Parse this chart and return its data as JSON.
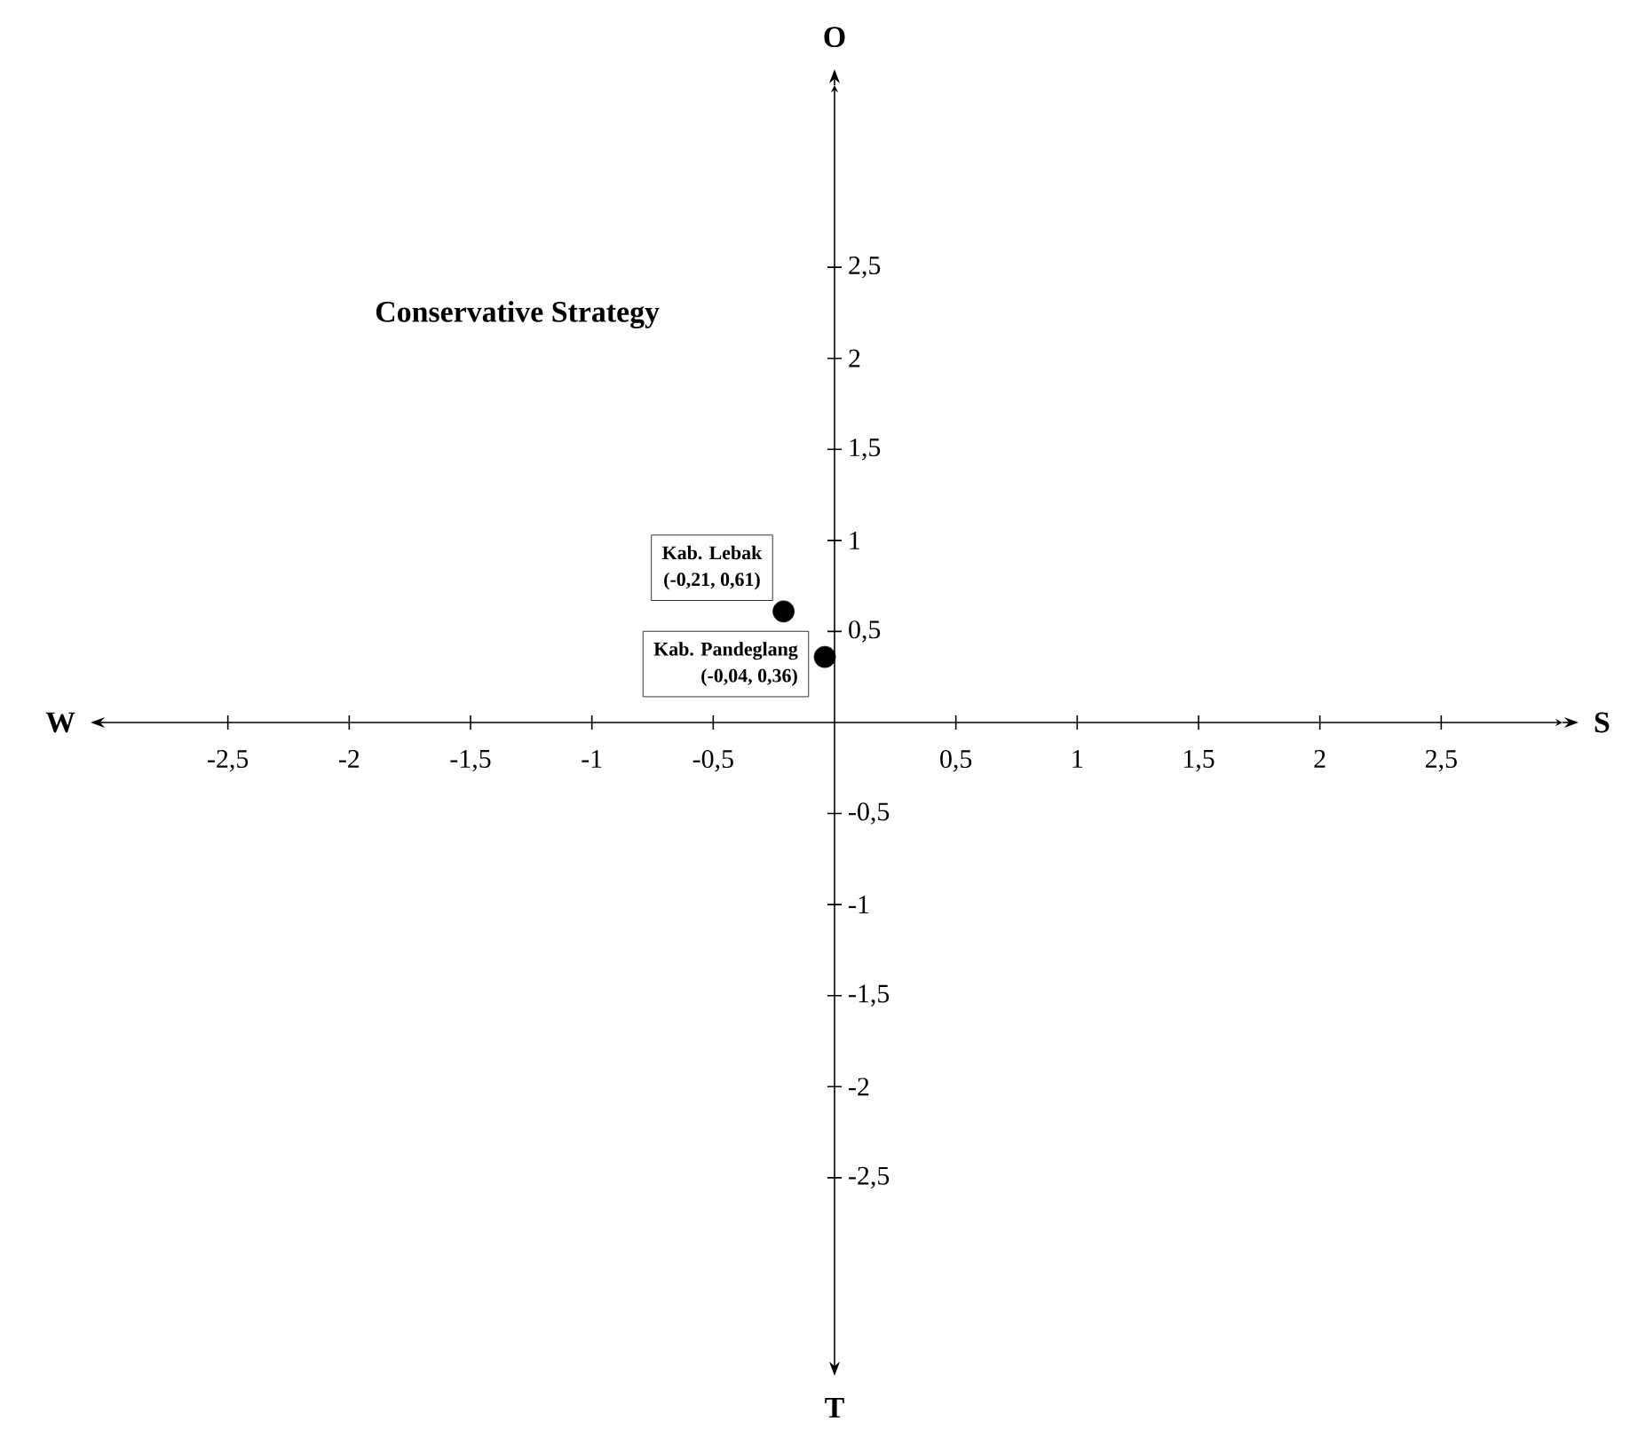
{
  "chart_data": {
    "type": "scatter",
    "xlabel": "S",
    "ylabel": "O",
    "annotations": [
      "Conservative Strategy",
      "W",
      "T",
      {
        "text": "Kab. Lebak",
        "x": -0.21,
        "y": 0.61
      },
      {
        "text": "Kab. Pandeglang",
        "x": -0.04,
        "y": 0.36
      }
    ],
    "series": [
      {
        "color": "#000000",
        "x": [
          -0.21,
          -0.04
        ],
        "values": [
          0.61,
          0.36
        ],
        "value_labels": [
          "(-0,21, 0,61)",
          "(-0,04, 0,36)"
        ]
      }
    ],
    "xlim": [
      -3,
      3
    ],
    "ylim": [
      -3.5,
      3.5
    ],
    "xticks": [
      {
        "value": -2.5,
        "label": "-2,5"
      },
      {
        "value": -2,
        "label": "-2"
      },
      {
        "value": -1.5,
        "label": "-1,5"
      },
      {
        "value": -1,
        "label": "-1"
      },
      {
        "value": -0.5,
        "label": "-0,5"
      },
      {
        "value": 0.5,
        "label": "0,5"
      },
      {
        "value": 1,
        "label": "1"
      },
      {
        "value": 1.5,
        "label": "1,5"
      },
      {
        "value": 2,
        "label": "2"
      },
      {
        "value": 2.5,
        "label": "2,5"
      }
    ],
    "yticks": [
      {
        "value": -2.5,
        "label": "-2,5"
      },
      {
        "value": -2,
        "label": "-2"
      },
      {
        "value": -1.5,
        "label": "-1,5"
      },
      {
        "value": -1,
        "label": "-1"
      },
      {
        "value": -0.5,
        "label": "-0,5"
      },
      {
        "value": 0.5,
        "label": "0,5"
      },
      {
        "value": 1,
        "label": "1"
      },
      {
        "value": 1.5,
        "label": "1,5"
      },
      {
        "value": 2,
        "label": "2"
      },
      {
        "value": 2.5,
        "label": "2,5"
      }
    ],
    "grid": false,
    "marker": "circle"
  }
}
